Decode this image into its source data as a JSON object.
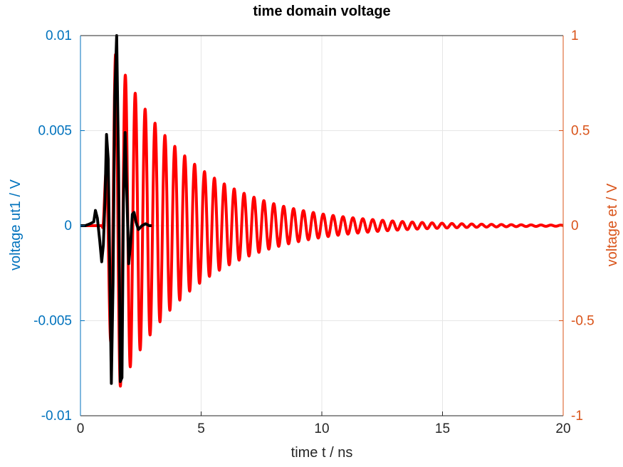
{
  "chart_data": {
    "type": "line",
    "title": "time domain voltage",
    "xlabel": "time t / ns",
    "ylabel_left": "voltage ut1 / V",
    "ylabel_right": "voltage et / V",
    "xlim": [
      0,
      20
    ],
    "ylim_left": [
      -0.01,
      0.01
    ],
    "ylim_right": [
      -1,
      1
    ],
    "x_ticks": [
      "0",
      "5",
      "10",
      "15",
      "20"
    ],
    "y_ticks_left": [
      "0.01",
      "0.005",
      "0",
      "-0.005",
      "-0.01"
    ],
    "y_ticks_right": [
      "1",
      "0.5",
      "0",
      "-0.5",
      "-1"
    ],
    "grid": true,
    "colors": {
      "left_axis": "#0072BD",
      "right_axis": "#D95319",
      "series_ut1": "#000000",
      "series_et": "#FF0000",
      "grid": "#e6e6e6"
    },
    "series": [
      {
        "axis": "left",
        "line_color": "#000000",
        "x": [
          0,
          0.2,
          0.4,
          0.55,
          0.62,
          0.7,
          0.8,
          0.88,
          0.95,
          1.02,
          1.08,
          1.15,
          1.22,
          1.28,
          1.35,
          1.42,
          1.5,
          1.58,
          1.65,
          1.72,
          1.78,
          1.85,
          1.92,
          2.0,
          2.08,
          2.15,
          2.22,
          2.3,
          2.4,
          2.55,
          2.7,
          2.85,
          2.95
        ],
        "y": [
          0,
          0,
          0.0001,
          0.0002,
          0.0008,
          0.0004,
          -0.0008,
          -0.0019,
          -0.001,
          0.0015,
          0.0048,
          0.0035,
          -0.0028,
          -0.0083,
          -0.003,
          0.0068,
          0.01,
          0.003,
          -0.0082,
          -0.008,
          0.0012,
          0.0049,
          0.0018,
          -0.002,
          -0.0009,
          0.0006,
          0.0007,
          0.0002,
          -0.0002,
          0,
          0.0001,
          0,
          0
        ]
      },
      {
        "axis": "right",
        "line_color": "#FF0000",
        "model": "damped_sine",
        "onset_ns": 0.9,
        "peak_ns": 1.45,
        "peak_value": 0.9,
        "period_ns": 0.41,
        "decay_ns": 3.2,
        "x_end": 20
      }
    ]
  }
}
